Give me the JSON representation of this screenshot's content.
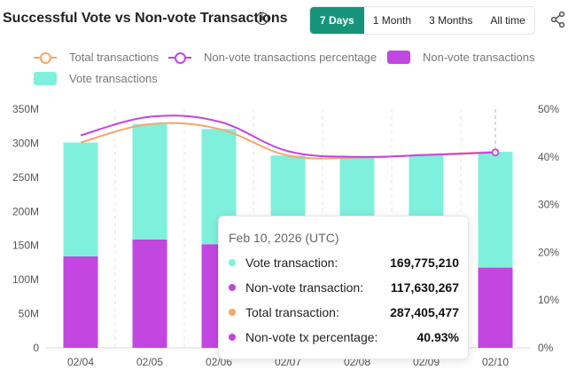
{
  "header": {
    "title": "Successful Vote vs Non-vote Transactions",
    "info_icon": "info-icon",
    "share_icon": "share-icon",
    "range_tabs": [
      {
        "label": "7 Days",
        "active": true
      },
      {
        "label": "1 Month",
        "active": false
      },
      {
        "label": "3 Months",
        "active": false
      },
      {
        "label": "All time",
        "active": false
      }
    ]
  },
  "legend": [
    {
      "label": "Total transactions",
      "kind": "line",
      "color": "#f5a66a"
    },
    {
      "label": "Non-vote transactions percentage",
      "kind": "line",
      "color": "#c246e0"
    },
    {
      "label": "Non-vote transactions",
      "kind": "box",
      "color": "#c246e0"
    },
    {
      "label": "Vote transactions",
      "kind": "box",
      "color": "#7ff0dc"
    }
  ],
  "chart_data": {
    "type": "bar",
    "stacked": true,
    "categories": [
      "02/04",
      "02/05",
      "02/06",
      "02/07",
      "02/08",
      "02/09",
      "02/10"
    ],
    "series": [
      {
        "name": "Non-vote transactions",
        "type": "bar",
        "axis": "left",
        "color": "#c246e0",
        "values": [
          134000000,
          159000000,
          152000000,
          118000000,
          116000000,
          117000000,
          117630267
        ]
      },
      {
        "name": "Vote transactions",
        "type": "bar",
        "axis": "left",
        "color": "#7ff0dc",
        "values": [
          167000000,
          169000000,
          169000000,
          164000000,
          163000000,
          166000000,
          169775210
        ]
      },
      {
        "name": "Total transactions",
        "type": "line",
        "axis": "left",
        "color": "#f5a66a",
        "values": [
          301000000,
          328000000,
          321000000,
          282000000,
          279000000,
          283000000,
          287405477
        ]
      },
      {
        "name": "Non-vote transactions percentage",
        "type": "line",
        "axis": "right",
        "color": "#c246e0",
        "values": [
          44.5,
          48.4,
          47.4,
          41.2,
          40.0,
          40.4,
          40.93
        ]
      }
    ],
    "y_left": {
      "min": 0,
      "max": 350000000,
      "ticks": [
        "0",
        "50M",
        "100M",
        "150M",
        "200M",
        "250M",
        "300M",
        "350M"
      ]
    },
    "y_right": {
      "min": 0,
      "max": 50,
      "ticks": [
        "0%",
        "10%",
        "20%",
        "30%",
        "40%",
        "50%"
      ]
    },
    "grid": "vertical-dashed",
    "legend_position": "top-left",
    "hover_index": 6
  },
  "tooltip": {
    "date": "Feb 10, 2026 (UTC)",
    "rows": [
      {
        "label": "Vote transaction:",
        "value": "169,775,210",
        "color": "#7ff0dc"
      },
      {
        "label": "Non-vote transaction:",
        "value": "117,630,267",
        "color": "#c246e0"
      },
      {
        "label": "Total transaction:",
        "value": "287,405,477",
        "color": "#f5a66a"
      },
      {
        "label": "Non-vote tx percentage:",
        "value": "40.93%",
        "color": "#c246e0"
      }
    ]
  }
}
